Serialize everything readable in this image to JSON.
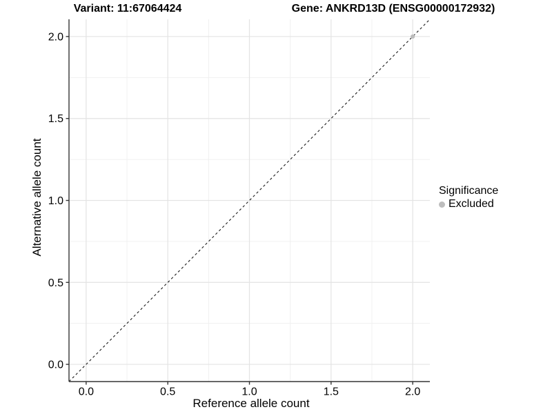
{
  "header": {
    "title_left": "Variant: 11:67064424",
    "title_right": "Gene: ANKRD13D (ENSG00000172932)"
  },
  "chart_data": {
    "type": "scatter",
    "title": "Variant: 11:67064424  Gene: ANKRD13D (ENSG00000172932)",
    "xlabel": "Reference allele count",
    "ylabel": "Alternative allele count",
    "xlim": [
      -0.105,
      2.105
    ],
    "ylim": [
      -0.105,
      2.105
    ],
    "x_ticks": {
      "values": [
        0.0,
        0.5,
        1.0,
        1.5,
        2.0
      ],
      "labels": [
        "0.0",
        "0.5",
        "1.0",
        "1.5",
        "2.0"
      ]
    },
    "y_ticks": {
      "values": [
        0.0,
        0.5,
        1.0,
        1.5,
        2.0
      ],
      "labels": [
        "0.0",
        "0.5",
        "1.0",
        "1.5",
        "2.0"
      ]
    },
    "grid": true,
    "identity_line": {
      "from": [
        -0.105,
        -0.105
      ],
      "to": [
        2.105,
        2.105
      ],
      "style": "dashed"
    },
    "series": [
      {
        "name": "Excluded",
        "color": "#bdbdbd",
        "points": [
          {
            "x": 2.0,
            "y": 2.0
          }
        ]
      }
    ],
    "legend": {
      "title": "Significance",
      "position": "right",
      "items": [
        {
          "label": "Excluded",
          "color": "#bdbdbd"
        }
      ]
    }
  },
  "colors": {
    "background": "#ffffff",
    "grid_major": "#e3e3e3",
    "grid_minor": "#f0f0f0",
    "axis_line": "#333333",
    "tick_mark": "#333333",
    "tick_label": "#000000",
    "dashed_line": "#1a1a1a",
    "point": "#bdbdbd"
  }
}
